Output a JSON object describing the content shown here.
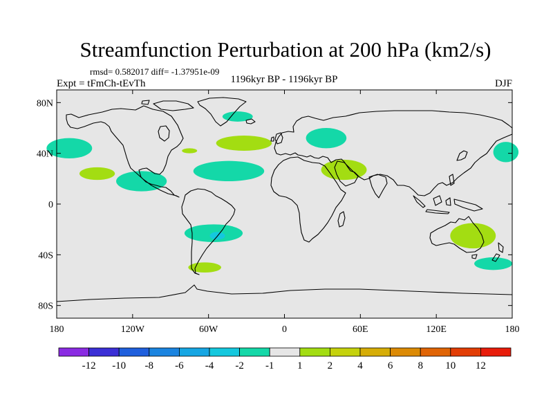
{
  "chart_data": {
    "type": "map-contour",
    "title": "Streamfunction Perturbation at 200 hPa (km2/s)",
    "stats_line": "rmsd= 0.582017 diff= -1.37951e-09",
    "experiment": "Expt = tFmCh-tEvTh",
    "period": "1196kyr BP - 1196kyr BP",
    "season": "DJF",
    "lon_range": [
      -180,
      180
    ],
    "lat_range": [
      -90,
      90
    ],
    "x_ticks": [
      {
        "value": -180,
        "label": "180"
      },
      {
        "value": -120,
        "label": "120W"
      },
      {
        "value": -60,
        "label": "60W"
      },
      {
        "value": 0,
        "label": "0"
      },
      {
        "value": 60,
        "label": "60E"
      },
      {
        "value": 120,
        "label": "120E"
      },
      {
        "value": 180,
        "label": "180"
      }
    ],
    "y_ticks": [
      {
        "value": 80,
        "label": "80N"
      },
      {
        "value": 40,
        "label": "40N"
      },
      {
        "value": 0,
        "label": "0"
      },
      {
        "value": -40,
        "label": "40S"
      },
      {
        "value": -80,
        "label": "80S"
      }
    ],
    "levels": [
      -12,
      -10,
      -8,
      -6,
      -4,
      -2,
      -1,
      1,
      2,
      4,
      6,
      8,
      10,
      12
    ],
    "colors": [
      "#8a2be2",
      "#3b2fd6",
      "#1f5fdd",
      "#1a84e0",
      "#16a6e3",
      "#14c8de",
      "#14d8a8",
      "#e6e6e6",
      "#a3dd12",
      "#c5d20c",
      "#d6ad06",
      "#dc8a04",
      "#e06405",
      "#e23d05",
      "#e81c0a"
    ],
    "anomalies": [
      {
        "lon": -37,
        "lat": 69,
        "rx": 12,
        "ry": 4,
        "bin": 6
      },
      {
        "lon": -170,
        "lat": 44,
        "rx": 18,
        "ry": 8,
        "bin": 6
      },
      {
        "lon": -148,
        "lat": 24,
        "rx": 14,
        "ry": 5,
        "bin": 8
      },
      {
        "lon": -113,
        "lat": 18,
        "rx": 20,
        "ry": 8,
        "bin": 6
      },
      {
        "lon": -75,
        "lat": 42,
        "rx": 6,
        "ry": 2,
        "bin": 8
      },
      {
        "lon": -44,
        "lat": 26,
        "rx": 28,
        "ry": 8,
        "bin": 6
      },
      {
        "lon": -32,
        "lat": 48,
        "rx": 22,
        "ry": 6,
        "bin": 8
      },
      {
        "lon": 33,
        "lat": 52,
        "rx": 16,
        "ry": 8,
        "bin": 6
      },
      {
        "lon": 47,
        "lat": 27,
        "rx": 18,
        "ry": 8,
        "bin": 8
      },
      {
        "lon": 175,
        "lat": 41,
        "rx": 10,
        "ry": 8,
        "bin": 6
      },
      {
        "lon": -56,
        "lat": -23,
        "rx": 23,
        "ry": 7,
        "bin": 6
      },
      {
        "lon": -53,
        "lat": -25,
        "rx": 6,
        "ry": 3,
        "bin": 5
      },
      {
        "lon": -63,
        "lat": -50,
        "rx": 13,
        "ry": 4,
        "bin": 8
      },
      {
        "lon": 149,
        "lat": -25,
        "rx": 18,
        "ry": 10,
        "bin": 8
      },
      {
        "lon": 165,
        "lat": -47,
        "rx": 15,
        "ry": 5,
        "bin": 6
      }
    ]
  }
}
